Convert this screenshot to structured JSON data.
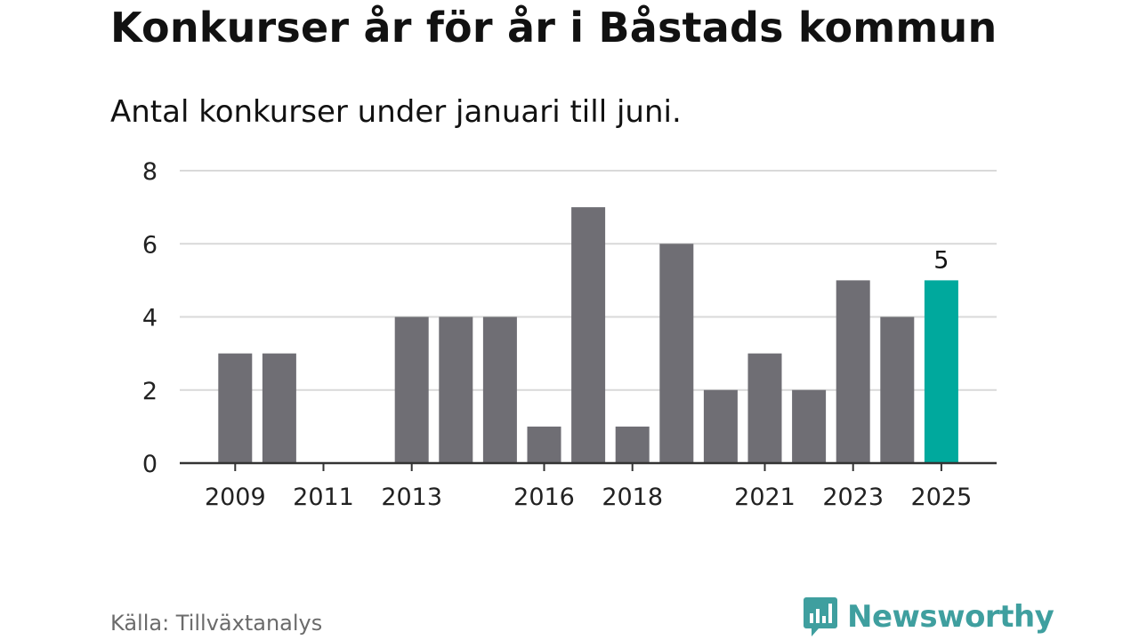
{
  "header": {
    "title": "Konkurser år för år i Båstads kommun",
    "subtitle": "Antal konkurser under januari till juni."
  },
  "footer": {
    "source": "Källa: Tillväxtanalys",
    "brand": "Newsworthy"
  },
  "colors": {
    "bar": "#6f6e74",
    "highlight": "#00a99d",
    "grid": "#d9d9d9",
    "axis": "#333333",
    "brand": "#3f9f9f"
  },
  "icons": {
    "brand_logo": "speech-bubble-bar-chart-icon"
  },
  "chart_data": {
    "type": "bar",
    "title": "Konkurser år för år i Båstads kommun",
    "subtitle": "Antal konkurser under januari till juni.",
    "categories": [
      "2009",
      "2010",
      "2011",
      "2012",
      "2013",
      "2014",
      "2015",
      "2016",
      "2017",
      "2018",
      "2019",
      "2020",
      "2021",
      "2022",
      "2023",
      "2024",
      "2025"
    ],
    "values": [
      3,
      3,
      0,
      0,
      4,
      4,
      4,
      1,
      7,
      1,
      6,
      2,
      3,
      2,
      5,
      4,
      5
    ],
    "x_tick_labels": [
      "2009",
      "2011",
      "2013",
      "2016",
      "2018",
      "2021",
      "2023",
      "2025"
    ],
    "y_ticks": [
      0,
      2,
      4,
      6,
      8
    ],
    "ylim": [
      0,
      8
    ],
    "xlabel": "",
    "ylabel": "",
    "highlight_category": "2025",
    "data_labels": [
      {
        "category": "2025",
        "text": "5"
      }
    ],
    "grid": true,
    "legend": "none"
  }
}
